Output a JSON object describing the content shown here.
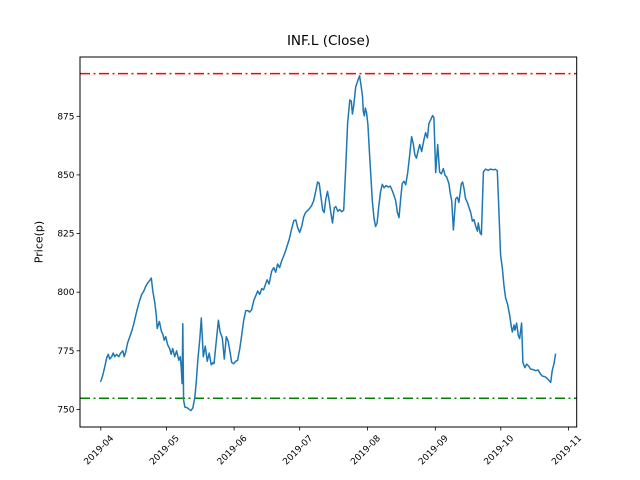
{
  "window": {
    "background": "#ffffff"
  },
  "chart_data": {
    "type": "line",
    "title": "INF.L (Close)",
    "ylabel": "Price(p)",
    "xlabel": "",
    "grid": false,
    "legend": null,
    "x_unit": "days since 2019-04-01",
    "x_tick_labels": [
      "2019-04",
      "2019-05",
      "2019-06",
      "2019-07",
      "2019-08",
      "2019-09",
      "2019-10",
      "2019-11"
    ],
    "x_tick_days": [
      0,
      30,
      61,
      91,
      122,
      153,
      183,
      214
    ],
    "y_ticks": [
      750,
      775,
      800,
      825,
      850,
      875
    ],
    "xlim_days": [
      -9.5,
      217.7
    ],
    "ylim": [
      742.5,
      900.3
    ],
    "hlines": [
      {
        "name": "upper-threshold",
        "value": 893.2,
        "color": "#ff0000",
        "linestyle": "dashdot"
      },
      {
        "name": "lower-threshold",
        "value": 754.8,
        "color": "#008000",
        "linestyle": "dashdot"
      }
    ],
    "series": [
      {
        "name": "close",
        "color": "#1f77b4",
        "linewidth": 1.5,
        "points": [
          [
            0,
            762
          ],
          [
            0.9,
            764.5
          ],
          [
            1.8,
            768
          ],
          [
            2.7,
            772
          ],
          [
            3.4,
            773.5
          ],
          [
            4.1,
            771.5
          ],
          [
            5,
            772.5
          ],
          [
            5.7,
            774
          ],
          [
            6.4,
            772.5
          ],
          [
            7.3,
            773.5
          ],
          [
            8.2,
            772.5
          ],
          [
            9.1,
            774
          ],
          [
            10.1,
            775
          ],
          [
            10.7,
            772.5
          ],
          [
            11.4,
            774.5
          ],
          [
            12.3,
            778.5
          ],
          [
            13.3,
            781
          ],
          [
            14.2,
            783.5
          ],
          [
            15.1,
            786.5
          ],
          [
            16,
            790
          ],
          [
            16.9,
            793.5
          ],
          [
            17.8,
            796.5
          ],
          [
            18.7,
            799
          ],
          [
            19.7,
            800.5
          ],
          [
            20.6,
            802.5
          ],
          [
            21.5,
            804
          ],
          [
            22.4,
            805
          ],
          [
            23.1,
            806
          ],
          [
            23.8,
            800.5
          ],
          [
            24.7,
            795.5
          ],
          [
            25.4,
            790
          ],
          [
            25.8,
            784.5
          ],
          [
            26.8,
            787.5
          ],
          [
            27.7,
            783.5
          ],
          [
            28.4,
            782
          ],
          [
            29,
            779.5
          ],
          [
            29.7,
            781
          ],
          [
            30.6,
            777.5
          ],
          [
            31.5,
            776
          ],
          [
            32.2,
            773.5
          ],
          [
            32.9,
            776
          ],
          [
            33.8,
            772.5
          ],
          [
            34.7,
            775
          ],
          [
            35.7,
            771
          ],
          [
            36.4,
            772.5
          ],
          [
            36.8,
            768
          ],
          [
            37.2,
            761
          ],
          [
            37.5,
            786.5
          ],
          [
            37.9,
            754
          ],
          [
            38.5,
            751
          ],
          [
            39.3,
            750.8
          ],
          [
            40.2,
            750.2
          ],
          [
            41.2,
            749.5
          ],
          [
            42.1,
            750.5
          ],
          [
            43,
            755
          ],
          [
            43.7,
            762
          ],
          [
            44.4,
            771
          ],
          [
            45.3,
            780
          ],
          [
            46,
            789
          ],
          [
            46.9,
            772.5
          ],
          [
            47.8,
            777
          ],
          [
            48.7,
            770.5
          ],
          [
            49.6,
            774
          ],
          [
            50.5,
            769
          ],
          [
            51.4,
            770
          ],
          [
            51.8,
            769.5
          ],
          [
            53.8,
            788
          ],
          [
            54.6,
            783
          ],
          [
            55.6,
            780.5
          ],
          [
            56.5,
            771.5
          ],
          [
            57.4,
            781
          ],
          [
            58.3,
            779
          ],
          [
            59.2,
            774
          ],
          [
            59.9,
            770
          ],
          [
            60.8,
            769.5
          ],
          [
            61.7,
            770.5
          ],
          [
            62.6,
            771
          ],
          [
            63.6,
            776
          ],
          [
            64.5,
            782
          ],
          [
            65.4,
            788
          ],
          [
            66.3,
            792
          ],
          [
            67.2,
            792.2
          ],
          [
            68.1,
            791.5
          ],
          [
            69,
            792.5
          ],
          [
            70,
            796.5
          ],
          [
            70.9,
            798.5
          ],
          [
            71.8,
            800.5
          ],
          [
            72.7,
            799
          ],
          [
            73.6,
            801.5
          ],
          [
            74.5,
            801
          ],
          [
            76.1,
            805.3
          ],
          [
            77,
            803.5
          ],
          [
            78.2,
            809
          ],
          [
            79.1,
            810.5
          ],
          [
            80,
            808.5
          ],
          [
            80.9,
            812
          ],
          [
            81.8,
            810.5
          ],
          [
            82.8,
            813.5
          ],
          [
            83.9,
            816
          ],
          [
            85,
            819
          ],
          [
            86.2,
            822.5
          ],
          [
            87.3,
            827
          ],
          [
            88.3,
            830.5
          ],
          [
            89.2,
            830.8
          ],
          [
            90.1,
            827.5
          ],
          [
            91,
            825.5
          ],
          [
            91.9,
            828
          ],
          [
            92.8,
            832
          ],
          [
            93.7,
            834
          ],
          [
            94.6,
            834.8
          ],
          [
            95.6,
            835.8
          ],
          [
            96.5,
            837
          ],
          [
            97.4,
            839
          ],
          [
            98.3,
            843
          ],
          [
            99.2,
            847
          ],
          [
            99.9,
            846.5
          ],
          [
            100.6,
            841.5
          ],
          [
            101.5,
            835
          ],
          [
            102.2,
            834
          ],
          [
            102.9,
            839.5
          ],
          [
            103.7,
            843
          ],
          [
            104.5,
            839
          ],
          [
            105.2,
            834
          ],
          [
            106,
            829.5
          ],
          [
            106.8,
            836
          ],
          [
            107.5,
            836.5
          ],
          [
            108.4,
            834.5
          ],
          [
            109.3,
            835.2
          ],
          [
            110.2,
            834.3
          ],
          [
            111.1,
            835
          ],
          [
            112,
            852
          ],
          [
            112.9,
            872
          ],
          [
            113.9,
            882
          ],
          [
            114.6,
            881.5
          ],
          [
            115.1,
            876
          ],
          [
            115.7,
            879.5
          ],
          [
            116.6,
            887.5
          ],
          [
            117.5,
            890
          ],
          [
            118.4,
            892.3
          ],
          [
            119.1,
            888
          ],
          [
            119.7,
            883.5
          ],
          [
            120.1,
            877
          ],
          [
            120.6,
            875.2
          ],
          [
            121,
            878.5
          ],
          [
            121.6,
            876.5
          ],
          [
            122.2,
            871.5
          ],
          [
            122.8,
            861.5
          ],
          [
            123.5,
            850
          ],
          [
            124.2,
            839
          ],
          [
            125,
            831.5
          ],
          [
            125.7,
            828
          ],
          [
            126.4,
            829.5
          ],
          [
            127.1,
            836
          ],
          [
            128,
            843
          ],
          [
            128.8,
            846
          ],
          [
            129.6,
            844.5
          ],
          [
            130.5,
            845.5
          ],
          [
            131.5,
            844.8
          ],
          [
            132.4,
            845.3
          ],
          [
            133.4,
            843.2
          ],
          [
            134.2,
            841
          ],
          [
            134.9,
            839
          ],
          [
            135.7,
            834
          ],
          [
            136.4,
            831.8
          ],
          [
            137.2,
            840
          ],
          [
            137.9,
            846.3
          ],
          [
            138.7,
            847.3
          ],
          [
            139.5,
            845.8
          ],
          [
            140.4,
            851
          ],
          [
            141.3,
            858.5
          ],
          [
            142.2,
            866.3
          ],
          [
            142.9,
            863.5
          ],
          [
            143.7,
            858.5
          ],
          [
            144.4,
            857.2
          ],
          [
            145.3,
            860.8
          ],
          [
            145.9,
            863
          ],
          [
            146.8,
            860
          ],
          [
            147.8,
            865
          ],
          [
            148.6,
            868
          ],
          [
            149.4,
            865.8
          ],
          [
            150.1,
            872
          ],
          [
            150.9,
            873.5
          ],
          [
            151.8,
            875.3
          ],
          [
            152.4,
            874.5
          ],
          [
            153.2,
            851
          ],
          [
            154.1,
            863
          ],
          [
            155,
            851.2
          ],
          [
            155.8,
            850.5
          ],
          [
            156.7,
            852.7
          ],
          [
            157.5,
            849.8
          ],
          [
            158.2,
            849.2
          ],
          [
            159.3,
            846.2
          ],
          [
            159.8,
            842.5
          ],
          [
            160.5,
            839
          ],
          [
            161.3,
            826.5
          ],
          [
            162.3,
            839.8
          ],
          [
            163.1,
            840.5
          ],
          [
            163.8,
            838.3
          ],
          [
            164.9,
            846.2
          ],
          [
            165.5,
            847
          ],
          [
            166.2,
            844
          ],
          [
            166.9,
            839.8
          ],
          [
            167.7,
            838.3
          ],
          [
            168.4,
            836.2
          ],
          [
            169.2,
            834
          ],
          [
            170,
            830.3
          ],
          [
            170.7,
            831
          ],
          [
            171.5,
            828.2
          ],
          [
            172.3,
            826
          ],
          [
            172.7,
            829.5
          ],
          [
            173.5,
            825.2
          ],
          [
            174.1,
            824.5
          ],
          [
            175,
            851.3
          ],
          [
            176,
            852.5
          ],
          [
            177.2,
            852
          ],
          [
            178.3,
            852.5
          ],
          [
            179.5,
            852.2
          ],
          [
            180.4,
            852.4
          ],
          [
            181.4,
            851.8
          ],
          [
            182.2,
            832.5
          ],
          [
            182.9,
            815.8
          ],
          [
            183.7,
            810
          ],
          [
            184.4,
            803
          ],
          [
            185.2,
            797.5
          ],
          [
            186.1,
            794.8
          ],
          [
            187,
            790.3
          ],
          [
            187.9,
            784.5
          ],
          [
            188.3,
            783
          ],
          [
            189,
            786
          ],
          [
            189.5,
            783.8
          ],
          [
            190.2,
            786.8
          ],
          [
            191,
            781.5
          ],
          [
            191.6,
            780.2
          ],
          [
            192.5,
            786.8
          ],
          [
            193.1,
            770
          ],
          [
            194,
            767.8
          ],
          [
            194.8,
            769.3
          ],
          [
            195.7,
            768.5
          ],
          [
            196.6,
            767.2
          ],
          [
            197.8,
            767
          ],
          [
            198.9,
            766.5
          ],
          [
            200.1,
            766.8
          ],
          [
            201.2,
            765
          ],
          [
            202,
            764.2
          ],
          [
            203,
            764
          ],
          [
            203.9,
            763.5
          ],
          [
            204.9,
            762.5
          ],
          [
            205.8,
            761.5
          ],
          [
            206.5,
            766.5
          ],
          [
            207.3,
            769.5
          ],
          [
            208,
            773.5
          ]
        ]
      }
    ]
  }
}
